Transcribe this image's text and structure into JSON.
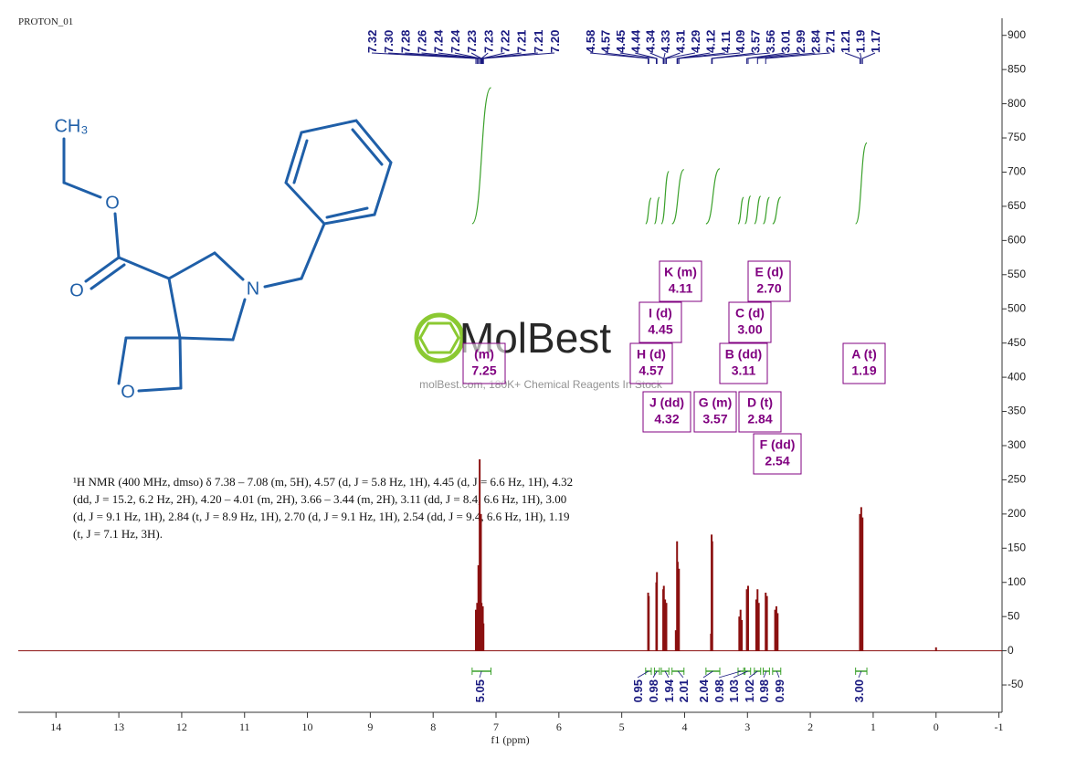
{
  "chart_data": {
    "type": "nmr",
    "title": "PROTON_01",
    "x_label": "f1 (ppm)",
    "xlim": [
      14.6,
      -1.05
    ],
    "ylim": [
      -90,
      925
    ],
    "xticks": [
      14,
      13,
      12,
      11,
      10,
      9,
      8,
      7,
      6,
      5,
      4,
      3,
      2,
      1,
      0,
      -1
    ],
    "yticks": [
      -50,
      0,
      50,
      100,
      150,
      200,
      250,
      300,
      350,
      400,
      450,
      500,
      550,
      600,
      650,
      700,
      750,
      800,
      850,
      900
    ],
    "spectrum": {
      "color": "#8b1010",
      "x": [
        7.32,
        7.3,
        7.28,
        7.26,
        7.24,
        7.23,
        7.21,
        7.2,
        4.58,
        4.57,
        4.45,
        4.44,
        4.34,
        4.33,
        4.31,
        4.29,
        4.14,
        4.12,
        4.11,
        4.09,
        3.58,
        3.57,
        3.56,
        3.13,
        3.11,
        3.09,
        3.01,
        2.99,
        2.86,
        2.84,
        2.82,
        2.71,
        2.69,
        2.56,
        2.54,
        2.52,
        1.21,
        1.19,
        1.17,
        0.0
      ],
      "values": [
        60,
        70,
        125,
        280,
        200,
        70,
        65,
        40,
        85,
        80,
        100,
        115,
        90,
        95,
        75,
        70,
        30,
        160,
        130,
        120,
        25,
        170,
        160,
        50,
        60,
        45,
        90,
        95,
        75,
        90,
        70,
        85,
        80,
        60,
        65,
        55,
        200,
        210,
        195,
        5
      ]
    },
    "peak_picks": {
      "color": "#1a1a80",
      "groups": [
        [
          {
            "value": 7.32,
            "label": "7.32"
          },
          {
            "value": 7.3,
            "label": "7.30"
          },
          {
            "value": 7.28,
            "label": "7.28"
          },
          {
            "value": 7.26,
            "label": "7.26"
          },
          {
            "value": 7.24,
            "label": "7.24"
          },
          {
            "value": 7.24,
            "label": "7.24"
          },
          {
            "value": 7.23,
            "label": "7.23"
          },
          {
            "value": 7.23,
            "label": "7.23"
          },
          {
            "value": 7.22,
            "label": "7.22"
          },
          {
            "value": 7.21,
            "label": "7.21"
          },
          {
            "value": 7.21,
            "label": "7.21"
          },
          {
            "value": 7.2,
            "label": "7.20"
          }
        ],
        [
          {
            "value": 4.58,
            "label": "4.58"
          },
          {
            "value": 4.57,
            "label": "4.57"
          },
          {
            "value": 4.45,
            "label": "4.45"
          },
          {
            "value": 4.44,
            "label": "4.44"
          },
          {
            "value": 4.34,
            "label": "4.34"
          },
          {
            "value": 4.33,
            "label": "4.33"
          },
          {
            "value": 4.31,
            "label": "4.31"
          },
          {
            "value": 4.29,
            "label": "4.29"
          },
          {
            "value": 4.12,
            "label": "4.12"
          },
          {
            "value": 4.11,
            "label": "4.11"
          },
          {
            "value": 4.09,
            "label": "4.09"
          },
          {
            "value": 3.57,
            "label": "3.57"
          },
          {
            "value": 3.56,
            "label": "3.56"
          },
          {
            "value": 3.01,
            "label": "3.01"
          },
          {
            "value": 2.99,
            "label": "2.99"
          },
          {
            "value": 2.84,
            "label": "2.84"
          },
          {
            "value": 2.71,
            "label": "2.71"
          },
          {
            "value": 1.21,
            "label": "1.21"
          },
          {
            "value": 1.19,
            "label": "1.19"
          },
          {
            "value": 1.17,
            "label": "1.17"
          }
        ]
      ]
    },
    "multiplets": {
      "color": "#800080",
      "names": [
        "K (m)",
        "E (d)",
        "I (d)",
        "C (d)",
        "H (d)",
        "B (dd)",
        "A (t)",
        "(m)",
        "J (dd)",
        "G (m)",
        "D (t)",
        "F (dd)"
      ],
      "shifts": [
        "4.11",
        "2.70",
        "4.45",
        "3.00",
        "4.57",
        "3.11",
        "1.19",
        "7.25",
        "4.32",
        "3.57",
        "2.84",
        "2.54"
      ]
    },
    "integrals": {
      "color": "#3aa02a",
      "values": [
        5.05,
        0.95,
        0.98,
        1.94,
        2.01,
        2.04,
        0.98,
        1.03,
        1.02,
        0.98,
        0.99,
        3.0
      ],
      "value_labels": [
        "5.05",
        "0.95",
        "0.98",
        "1.94",
        "2.01",
        "2.04",
        "0.98",
        "1.03",
        "1.02",
        "0.98",
        "0.99",
        "3.00"
      ],
      "from": [
        7.38,
        4.62,
        4.48,
        4.37,
        4.2,
        3.66,
        3.15,
        3.04,
        2.89,
        2.75,
        2.6,
        1.28
      ],
      "to": [
        7.08,
        4.53,
        4.4,
        4.25,
        4.01,
        3.44,
        3.06,
        2.95,
        2.79,
        2.65,
        2.47,
        1.1
      ]
    },
    "description": [
      "¹H NMR (400 MHz, dmso) δ 7.38 – 7.08 (m, 5H), 4.57 (d, J = 5.8 Hz, 1H), 4.45 (d, J = 6.6 Hz, 1H), 4.32",
      "(dd, J = 15.2, 6.2 Hz, 2H), 4.20 – 4.01 (m, 2H), 3.66 – 3.44 (m, 2H), 3.11 (dd, J = 8.4, 6.6 Hz, 1H), 3.00",
      "(d, J = 9.1 Hz, 1H), 2.84 (t, J = 8.9 Hz, 1H), 2.70 (d, J = 9.1 Hz, 1H), 2.54 (dd, J = 9.4, 6.6 Hz, 1H), 1.19",
      "(t, J = 7.1 Hz, 3H)."
    ]
  },
  "structure": {
    "atoms": [
      "CH₃",
      "O",
      "O",
      "N",
      "O"
    ]
  },
  "watermark": {
    "brand": "MolBest",
    "tagline": "molBest.com, 180K+ Chemical Reagents In Stock"
  }
}
